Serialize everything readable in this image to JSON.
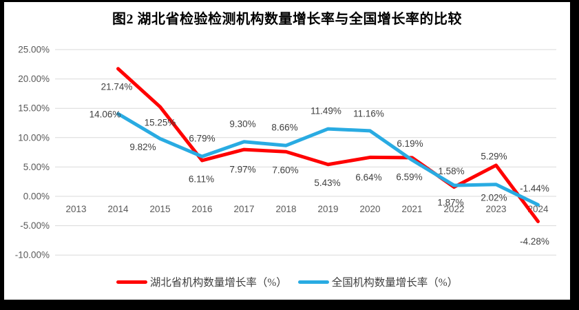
{
  "frame": {
    "background": "#FFFFFF",
    "border_color": "#000000"
  },
  "chart_data": {
    "type": "line",
    "title": "图2 湖北省检验检测机构数量增长率与全国增长率的比较",
    "categories": [
      "2013",
      "2014",
      "2015",
      "2016",
      "2017",
      "2018",
      "2019",
      "2020",
      "2021",
      "2022",
      "2023",
      "2024"
    ],
    "series": [
      {
        "name": "湖北省机构数量增长率（%）",
        "color": "#FF0000",
        "values": [
          null,
          21.74,
          15.25,
          6.11,
          7.97,
          7.6,
          5.43,
          6.64,
          6.59,
          1.58,
          5.29,
          -4.28
        ],
        "labels": [
          "",
          "21.74%",
          "15.25%",
          "6.11%",
          "7.97%",
          "7.60%",
          "5.43%",
          "6.64%",
          "6.59%",
          "1.58%",
          "5.29%",
          "-4.28%"
        ]
      },
      {
        "name": "全国机构数量增长率（%）",
        "color": "#29ABE2",
        "values": [
          null,
          14.06,
          9.82,
          6.79,
          9.3,
          8.66,
          11.49,
          11.16,
          6.19,
          1.87,
          2.02,
          -1.44
        ],
        "labels": [
          "",
          "14.06%",
          "9.82%",
          "6.79%",
          "9.30%",
          "8.66%",
          "11.49%",
          "11.16%",
          "6.19%",
          "1.87%",
          "2.02%",
          "-1.44%"
        ]
      }
    ],
    "y_axis": {
      "min": -10,
      "max": 25,
      "step": 5,
      "tick_labels": [
        "25.00%",
        "20.00%",
        "15.00%",
        "10.00%",
        "5.00%",
        "0.00%",
        "-5.00%",
        "-10.00%"
      ]
    },
    "grid": true,
    "gridline_color": "#D9D9D9",
    "tick_text_color": "#595959",
    "data_label_color": "#404040",
    "legend_position": "bottom",
    "data_labels": true
  }
}
